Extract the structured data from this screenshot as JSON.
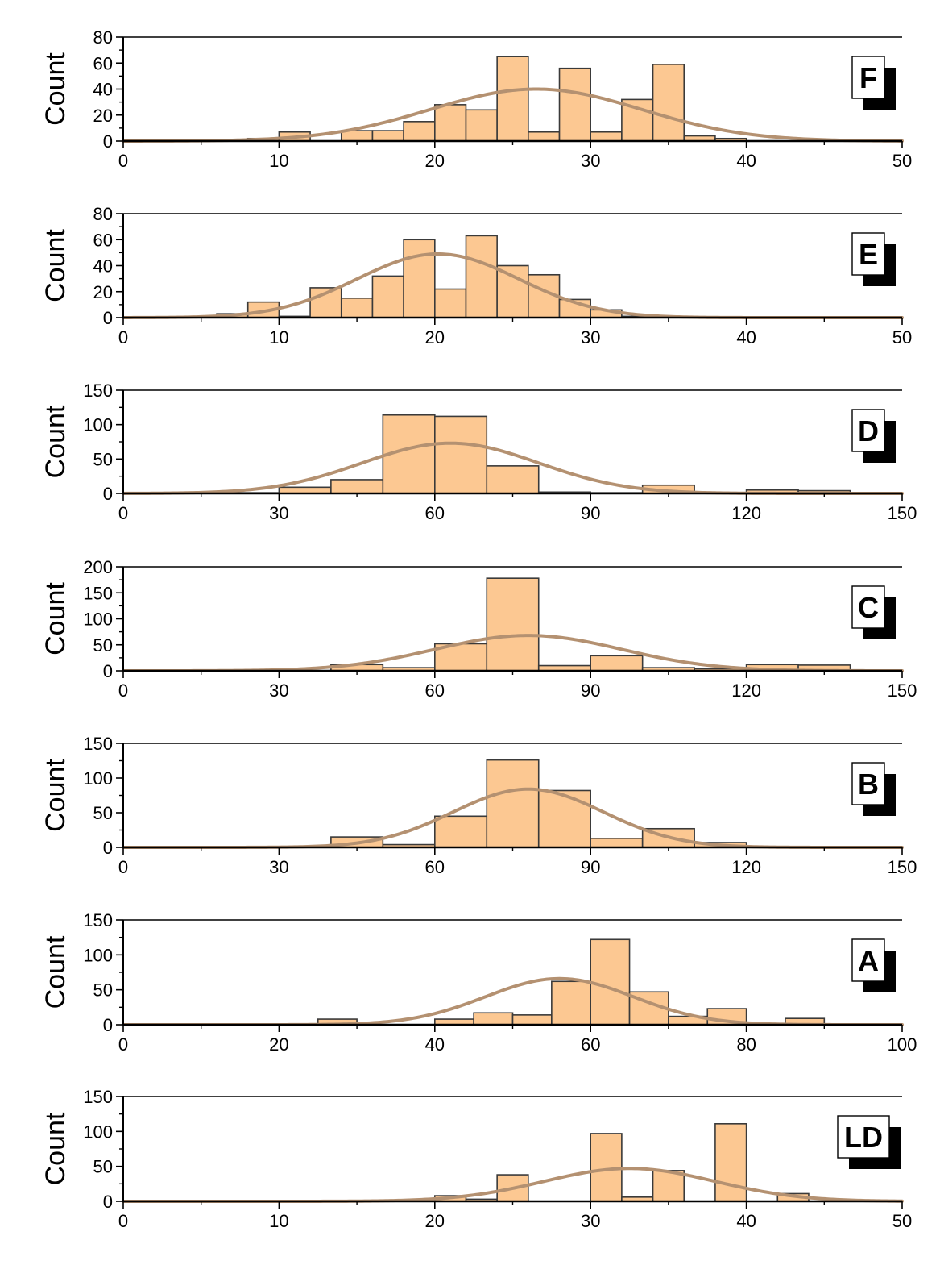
{
  "colors": {
    "bar_fill": "#fcc892",
    "bar_stroke": "#3a3a3a",
    "curve": "#b49171",
    "axis": "#000000"
  },
  "chart_data": [
    {
      "type": "bar",
      "panel_label": "F",
      "ylabel": "Count",
      "xlim": [
        0,
        50
      ],
      "ylim": [
        0,
        80
      ],
      "xticks": [
        0,
        10,
        20,
        30,
        40,
        50
      ],
      "yticks": [
        0,
        20,
        40,
        60,
        80
      ],
      "x_minor_step": 5,
      "y_minor_step": 10,
      "bin_width": 2,
      "bin_edges_start": 8,
      "values": [
        2,
        7,
        0,
        8,
        8,
        15,
        28,
        24,
        65,
        7,
        56,
        7,
        32,
        59,
        4,
        2
      ],
      "normal_fit": {
        "mean": 26.5,
        "sd": 6.8,
        "peak": 40
      }
    },
    {
      "type": "bar",
      "panel_label": "E",
      "ylabel": "Count",
      "xlim": [
        0,
        50
      ],
      "ylim": [
        0,
        80
      ],
      "xticks": [
        0,
        10,
        20,
        30,
        40,
        50
      ],
      "yticks": [
        0,
        20,
        40,
        60,
        80
      ],
      "x_minor_step": 5,
      "y_minor_step": 10,
      "bin_width": 2,
      "bin_edges_start": 6,
      "values": [
        3,
        12,
        1,
        23,
        15,
        32,
        60,
        22,
        63,
        40,
        33,
        14,
        6,
        1
      ],
      "normal_fit": {
        "mean": 20.2,
        "sd": 5.2,
        "peak": 49
      }
    },
    {
      "type": "bar",
      "panel_label": "D",
      "ylabel": "Count",
      "xlim": [
        0,
        150
      ],
      "ylim": [
        0,
        150
      ],
      "xticks": [
        0,
        30,
        60,
        90,
        120,
        150
      ],
      "yticks": [
        0,
        50,
        100,
        150
      ],
      "x_minor_step": 15,
      "y_minor_step": 25,
      "bin_width": 10,
      "bin_edges_start": 20,
      "values": [
        1,
        9,
        20,
        114,
        112,
        40,
        2,
        1,
        12,
        1,
        5,
        4
      ],
      "normal_fit": {
        "mean": 63,
        "sd": 17,
        "peak": 73
      }
    },
    {
      "type": "bar",
      "panel_label": "C",
      "ylabel": "Count",
      "xlim": [
        0,
        150
      ],
      "ylim": [
        0,
        200
      ],
      "xticks": [
        0,
        30,
        60,
        90,
        120,
        150
      ],
      "yticks": [
        0,
        50,
        100,
        150,
        200
      ],
      "x_minor_step": 15,
      "y_minor_step": 25,
      "bin_width": 10,
      "bin_edges_start": 40,
      "values": [
        12,
        6,
        52,
        178,
        10,
        29,
        6,
        4,
        12,
        11
      ],
      "normal_fit": {
        "mean": 78,
        "sd": 18,
        "peak": 68
      }
    },
    {
      "type": "bar",
      "panel_label": "B",
      "ylabel": "Count",
      "xlim": [
        0,
        150
      ],
      "ylim": [
        0,
        150
      ],
      "xticks": [
        0,
        30,
        60,
        90,
        120,
        150
      ],
      "yticks": [
        0,
        50,
        100,
        150
      ],
      "x_minor_step": 15,
      "y_minor_step": 25,
      "bin_width": 10,
      "bin_edges_start": 40,
      "values": [
        15,
        4,
        45,
        126,
        82,
        13,
        27,
        7
      ],
      "normal_fit": {
        "mean": 78,
        "sd": 14.5,
        "peak": 84
      }
    },
    {
      "type": "bar",
      "panel_label": "A",
      "ylabel": "Count",
      "xlim": [
        0,
        100
      ],
      "ylim": [
        0,
        150
      ],
      "xticks": [
        0,
        20,
        40,
        60,
        80,
        100
      ],
      "yticks": [
        0,
        50,
        100,
        150
      ],
      "x_minor_step": 10,
      "y_minor_step": 25,
      "bin_width": 5,
      "bin_edges_start": 25,
      "values": [
        8,
        0,
        0,
        8,
        17,
        14,
        62,
        122,
        47,
        12,
        23,
        2,
        9
      ],
      "normal_fit": {
        "mean": 56,
        "sd": 9.5,
        "peak": 66
      }
    },
    {
      "type": "bar",
      "panel_label": "LD",
      "ylabel": "Count",
      "xlim": [
        0,
        50
      ],
      "ylim": [
        0,
        150
      ],
      "xticks": [
        0,
        10,
        20,
        30,
        40,
        50
      ],
      "yticks": [
        0,
        50,
        100,
        150
      ],
      "x_minor_step": 5,
      "y_minor_step": 25,
      "bin_width": 2,
      "bin_edges_start": 20,
      "values": [
        8,
        3,
        38,
        0,
        0,
        97,
        6,
        44,
        0,
        111,
        0,
        11
      ],
      "normal_fit": {
        "mean": 32.5,
        "sd": 5.5,
        "peak": 47
      }
    }
  ]
}
